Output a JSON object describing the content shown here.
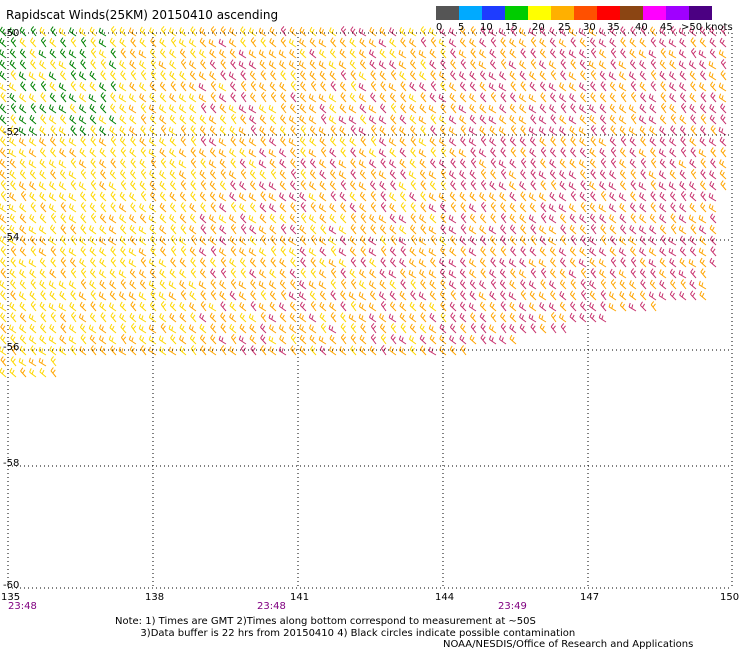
{
  "title": "Rapidscat Winds(25KM) 20150410 ascending",
  "legend": {
    "ticks": [
      "0",
      "5",
      "10",
      "15",
      "20",
      "25",
      "30",
      "35",
      "40",
      "45",
      ">50 knots"
    ],
    "colors": [
      "#555555",
      "#00aaff",
      "#1e3cff",
      "#00cc00",
      "#ffff00",
      "#ffb000",
      "#ff5000",
      "#ff0000",
      "#8b4513",
      "#ff00ff",
      "#a000ff",
      "#4b0082"
    ]
  },
  "map": {
    "lat_labels": [
      "-50",
      "-52",
      "-54",
      "-56",
      "-58",
      "-60"
    ],
    "lon_labels": [
      "135",
      "138",
      "141",
      "144",
      "147",
      "150"
    ],
    "time_labels": [
      "23:48",
      "23:48",
      "23:49"
    ]
  },
  "wind_field": {
    "description_colors": {
      "west": "#ffd700",
      "northwest": "#008000",
      "central": "#ffa500",
      "east": "#c8326e"
    }
  },
  "notes": [
    "Note: 1) Times are GMT 2)Times along bottom correspond to measurement at ~50S",
    "        3)Data buffer is 22 hrs from 20150410 4) Black circles indicate possible contamination"
  ],
  "credit": "NOAA/NESDIS/Office of Research and Applications"
}
